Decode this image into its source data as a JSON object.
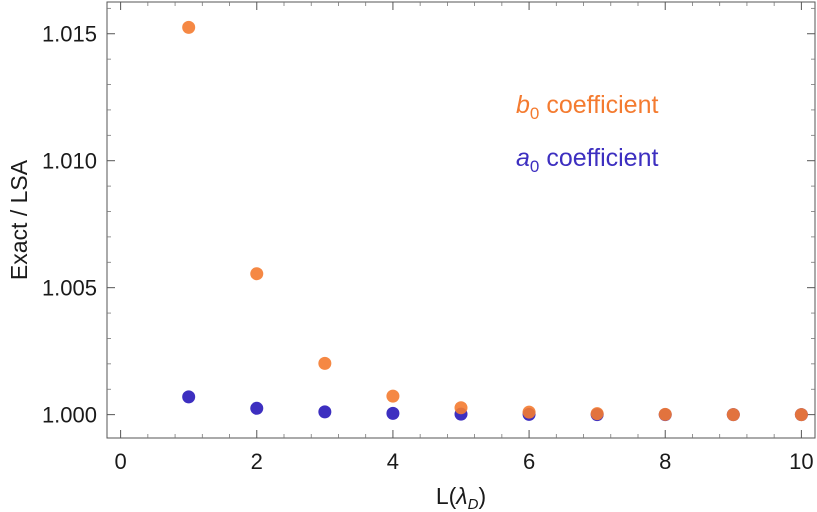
{
  "chart_data": {
    "type": "scatter",
    "title": "",
    "xlabel": "L(",
    "xlabel_symbol": "λ",
    "xlabel_subscript": "D",
    "xlabel_close": ")",
    "ylabel": "Exact / LSA",
    "xlim": [
      -0.2,
      10.2
    ],
    "ylim": [
      0.99908,
      1.01625
    ],
    "x_ticks": [
      0,
      2,
      4,
      6,
      8,
      10
    ],
    "x_tick_labels": [
      "0",
      "2",
      "4",
      "6",
      "8",
      "10"
    ],
    "y_ticks": [
      1.0,
      1.005,
      1.01,
      1.015
    ],
    "y_tick_labels": [
      "1.000",
      "1.005",
      "1.010",
      "1.015"
    ],
    "grid": false,
    "series": [
      {
        "name": "a0 coefficient",
        "legend_letter": "a",
        "legend_subscript": "0",
        "legend_text": " coefficient",
        "color": "#3d2fc0",
        "x": [
          1,
          2,
          3,
          4,
          5,
          6,
          7,
          8,
          9,
          10
        ],
        "y": [
          1.0007,
          1.00025,
          1.00011,
          1.00005,
          1.00002,
          1.00001,
          1.0,
          1.0,
          1.0,
          1.0
        ]
      },
      {
        "name": "b0 coefficient",
        "legend_letter": "b",
        "legend_subscript": "0",
        "legend_text": " coefficient",
        "color": "#f47b30",
        "x": [
          1,
          2,
          3,
          4,
          5,
          6,
          7,
          8,
          9,
          10
        ],
        "y": [
          1.01525,
          1.00555,
          1.00202,
          1.00073,
          1.00027,
          1.0001,
          1.00004,
          1.00001,
          1.0,
          1.0
        ]
      }
    ],
    "legend_position": "upper-right"
  }
}
